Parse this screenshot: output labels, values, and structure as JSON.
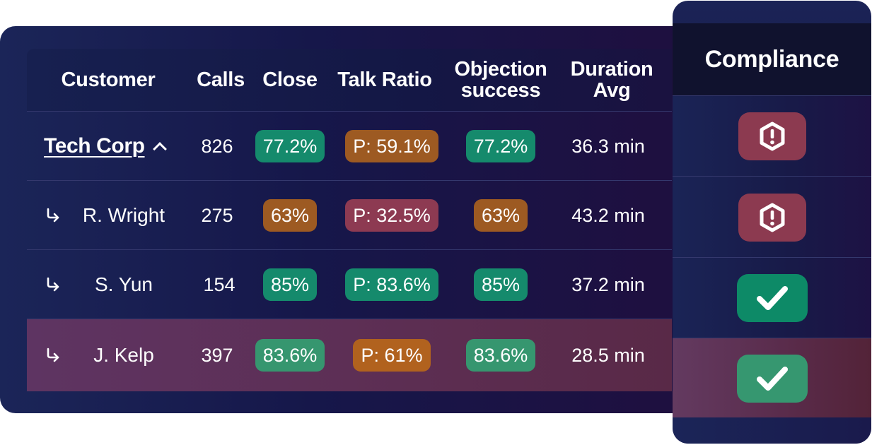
{
  "table": {
    "headers": {
      "customer": "Customer",
      "calls": "Calls",
      "close": "Close",
      "talk_ratio": "Talk Ratio",
      "objection_line1": "Objection",
      "objection_line2": "success",
      "duration_line1": "Duration",
      "duration_line2": "Avg"
    },
    "rows": [
      {
        "customer": "Tech Corp",
        "calls": "826",
        "close": "77.2%",
        "close_status": "green",
        "talk_ratio": "P: 59.1%",
        "talk_status": "orange",
        "objection": "77.2%",
        "objection_status": "green",
        "duration": "36.3 min",
        "compliance": "warning"
      },
      {
        "customer": "R. Wright",
        "calls": "275",
        "close": "63%",
        "close_status": "orange",
        "talk_ratio": "P: 32.5%",
        "talk_status": "red",
        "objection": "63%",
        "objection_status": "orange",
        "duration": "43.2 min",
        "compliance": "warning"
      },
      {
        "customer": "S. Yun",
        "calls": "154",
        "close": "85%",
        "close_status": "green",
        "talk_ratio": "P: 83.6%",
        "talk_status": "green",
        "objection": "85%",
        "objection_status": "green",
        "duration": "37.2 min",
        "compliance": "ok"
      },
      {
        "customer": "J. Kelp",
        "calls": "397",
        "close": "83.6%",
        "close_status": "green",
        "talk_ratio": "P: 61%",
        "talk_status": "orange",
        "objection": "83.6%",
        "objection_status": "green",
        "duration": "28.5 min",
        "compliance": "ok"
      }
    ]
  },
  "compliance": {
    "header": "Compliance"
  },
  "icons": {
    "expand": "chevron-up-icon",
    "sub_row": "subdirectory-arrow-icon",
    "warning": "alert-octagon-icon",
    "ok": "checkmark-icon"
  },
  "colors": {
    "green": "#158a6c",
    "orange": "#9d5a22",
    "red": "#8d3a52",
    "highlight_row": "#5d2f55"
  }
}
